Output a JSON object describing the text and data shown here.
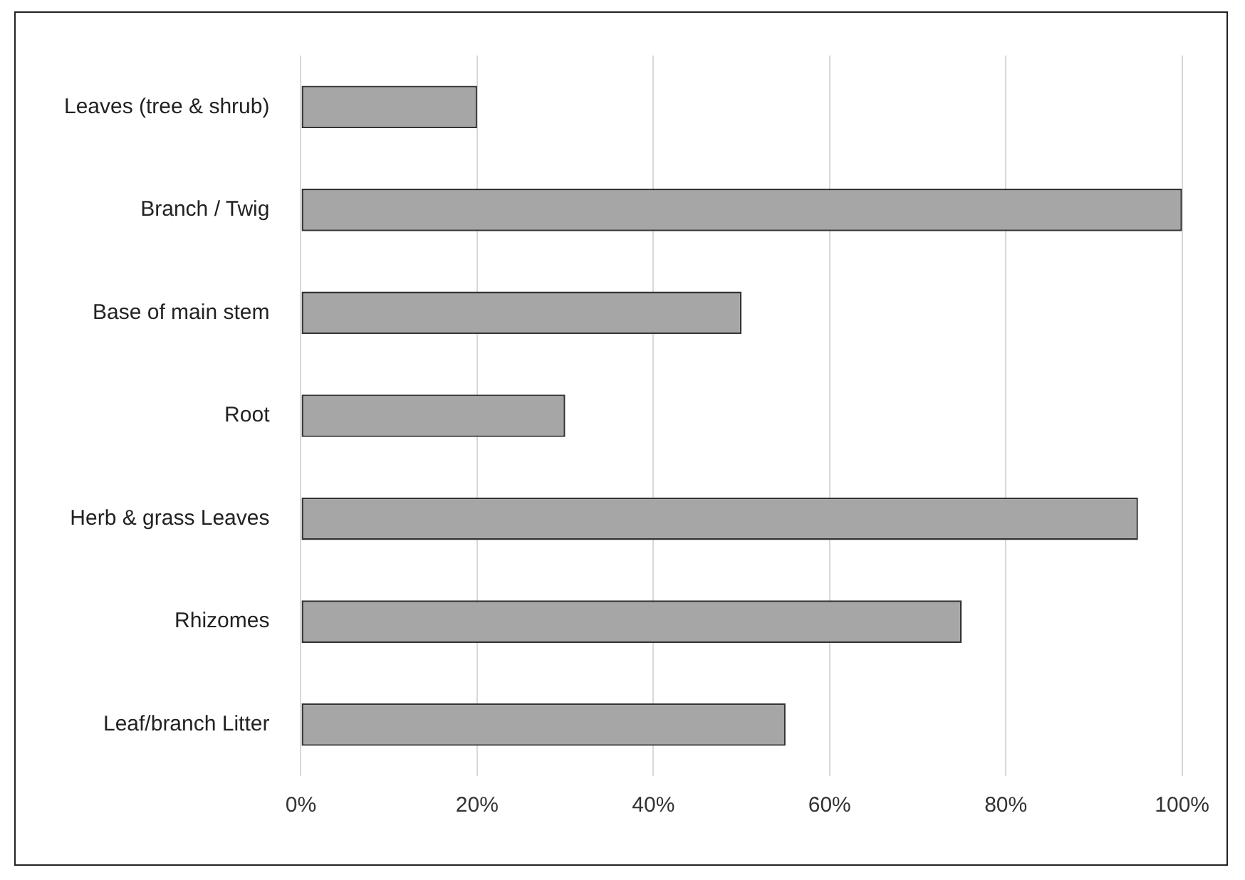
{
  "chart_data": {
    "type": "bar",
    "orientation": "horizontal",
    "categories": [
      "Leaves (tree & shrub)",
      "Branch / Twig",
      "Base of main stem",
      "Root",
      "Herb & grass Leaves",
      "Rhizomes",
      "Leaf/branch Litter"
    ],
    "values": [
      20,
      100,
      50,
      30,
      95,
      75,
      55
    ],
    "color": "#a6a6a6",
    "xlim": [
      0,
      100
    ],
    "xticks": [
      {
        "value": 0,
        "label": "0%"
      },
      {
        "value": 20,
        "label": "20%"
      },
      {
        "value": 40,
        "label": "40%"
      },
      {
        "value": 60,
        "label": "60%"
      },
      {
        "value": 80,
        "label": "80%"
      },
      {
        "value": 100,
        "label": "100%"
      }
    ],
    "grid": "x",
    "legend": false
  }
}
